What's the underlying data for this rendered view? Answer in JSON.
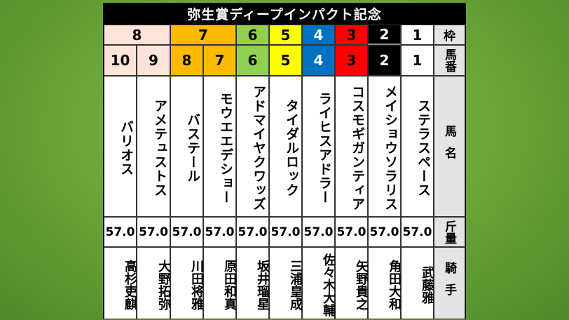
{
  "title": "弥生賞ディープインパクト記念",
  "headers": {
    "waku": "枠",
    "umaban": "馬番",
    "name": "馬名",
    "weight": "斤量",
    "jockey": "騎手"
  },
  "waku": [
    {
      "num": "8",
      "bg": "#fde3d9",
      "fg": "#000000",
      "span": 2
    },
    {
      "num": "7",
      "bg": "#fdbb00",
      "fg": "#000000",
      "span": 2
    },
    {
      "num": "6",
      "bg": "#92d050",
      "fg": "#000000",
      "span": 1
    },
    {
      "num": "5",
      "bg": "#ffff00",
      "fg": "#000000",
      "span": 1
    },
    {
      "num": "4",
      "bg": "#0070c0",
      "fg": "#ffffff",
      "span": 1
    },
    {
      "num": "3",
      "bg": "#ff0000",
      "fg": "#000000",
      "span": 1
    },
    {
      "num": "2",
      "bg": "#000000",
      "fg": "#ffffff",
      "span": 1
    },
    {
      "num": "1",
      "bg": "#ffffff",
      "fg": "#000000",
      "span": 1
    }
  ],
  "horses": [
    {
      "umaban": "10",
      "name": "バリオス",
      "weight": "57.0",
      "jockey": "高杉吏麒",
      "bg": "#fde3d9",
      "fg": "#000000"
    },
    {
      "umaban": "9",
      "name": "アメテュストス",
      "weight": "57.0",
      "jockey": "大野拓弥",
      "bg": "#fde3d9",
      "fg": "#000000"
    },
    {
      "umaban": "8",
      "name": "バステール",
      "weight": "57.0",
      "jockey": "川田将雅",
      "bg": "#fdbb00",
      "fg": "#000000"
    },
    {
      "umaban": "7",
      "name": "モウエエデショー",
      "weight": "57.0",
      "jockey": "原田和真",
      "bg": "#fdbb00",
      "fg": "#000000"
    },
    {
      "umaban": "6",
      "name": "アドマイヤクワッズ",
      "weight": "57.0",
      "jockey": "坂井瑠星",
      "bg": "#92d050",
      "fg": "#000000"
    },
    {
      "umaban": "5",
      "name": "タイダルロック",
      "weight": "57.0",
      "jockey": "三浦皇成",
      "bg": "#ffff00",
      "fg": "#000000"
    },
    {
      "umaban": "4",
      "name": "ライヒスアドラー",
      "weight": "57.0",
      "jockey": "佐々木大輔",
      "bg": "#0070c0",
      "fg": "#ffffff"
    },
    {
      "umaban": "3",
      "name": "コスモギガンティア",
      "weight": "57.0",
      "jockey": "矢野貴之",
      "bg": "#ff0000",
      "fg": "#000000"
    },
    {
      "umaban": "2",
      "name": "メイショウソラリス",
      "weight": "57.0",
      "jockey": "角田大和",
      "bg": "#000000",
      "fg": "#ffffff"
    },
    {
      "umaban": "1",
      "name": "ステラスペース",
      "weight": "57.0",
      "jockey": "武藤雅",
      "bg": "#ffffff",
      "fg": "#000000"
    }
  ]
}
